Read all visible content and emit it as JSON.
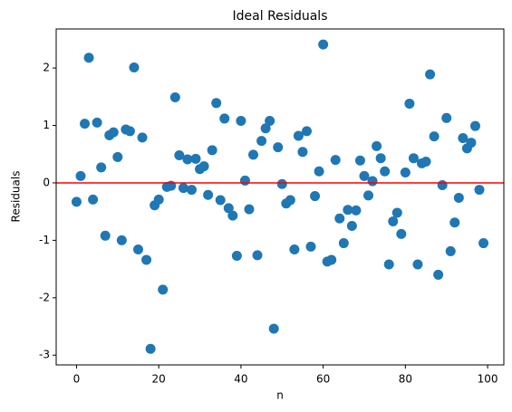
{
  "chart_data": {
    "type": "scatter",
    "title": "Ideal Residuals",
    "x_label": "n",
    "y_label": "Residuals",
    "x": [
      0,
      1,
      2,
      3,
      4,
      5,
      6,
      7,
      8,
      9,
      10,
      11,
      12,
      13,
      14,
      15,
      16,
      17,
      18,
      19,
      20,
      21,
      22,
      23,
      24,
      25,
      26,
      27,
      28,
      29,
      30,
      31,
      32,
      33,
      34,
      35,
      36,
      37,
      38,
      39,
      40,
      41,
      42,
      43,
      44,
      45,
      46,
      47,
      48,
      49,
      50,
      51,
      52,
      53,
      54,
      55,
      56,
      57,
      58,
      59,
      60,
      61,
      62,
      63,
      64,
      65,
      66,
      67,
      68,
      69,
      70,
      71,
      72,
      73,
      74,
      75,
      76,
      77,
      78,
      79,
      80,
      81,
      82,
      83,
      84,
      85,
      86,
      87,
      88,
      89,
      90,
      91,
      92,
      93,
      94,
      95,
      96,
      97,
      98,
      99
    ],
    "series": [
      {
        "color": "#1f77b4",
        "values": [
          -0.33,
          0.12,
          1.03,
          2.18,
          -0.29,
          1.05,
          0.27,
          -0.92,
          0.83,
          0.88,
          0.45,
          -1.0,
          0.93,
          0.9,
          2.01,
          -1.16,
          0.79,
          -1.34,
          -2.89,
          -0.39,
          -0.29,
          -1.86,
          -0.07,
          -0.05,
          1.49,
          0.48,
          -0.09,
          0.41,
          -0.12,
          0.42,
          0.24,
          0.29,
          -0.21,
          0.57,
          1.39,
          -0.3,
          1.12,
          -0.44,
          -0.57,
          -1.27,
          1.08,
          0.04,
          -0.46,
          0.49,
          -1.26,
          0.73,
          0.95,
          1.08,
          -2.54,
          0.62,
          -0.02,
          -0.36,
          -0.3,
          -1.16,
          0.82,
          0.54,
          0.9,
          -1.11,
          -0.23,
          0.2,
          2.41,
          -1.37,
          -1.34,
          0.4,
          -0.62,
          -1.05,
          -0.47,
          -0.75,
          -0.48,
          0.39,
          0.12,
          -0.22,
          0.03,
          0.64,
          0.43,
          0.2,
          -1.42,
          -0.67,
          -0.52,
          -0.89,
          0.18,
          1.38,
          0.43,
          -1.42,
          0.34,
          0.37,
          1.89,
          0.81,
          -1.6,
          -0.04,
          1.13,
          -1.19,
          -0.69,
          -0.26,
          0.78,
          0.6,
          0.7,
          0.99,
          -0.12,
          -1.05
        ]
      }
    ],
    "hline": {
      "value": 0,
      "color": "#ff0000"
    },
    "xlim": [
      -4.95,
      103.95
    ],
    "xticks": [
      0,
      20,
      40,
      60,
      80,
      100
    ],
    "ylim": [
      -3.17,
      2.68
    ],
    "yticks": [
      -3,
      -2,
      -1,
      0,
      1,
      2
    ]
  }
}
